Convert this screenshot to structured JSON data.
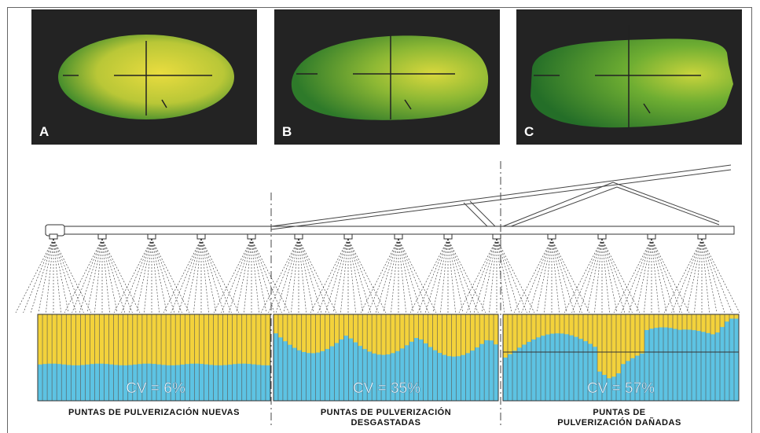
{
  "photos": [
    {
      "label": "A"
    },
    {
      "label": "B"
    },
    {
      "label": "C"
    }
  ],
  "panels": [
    {
      "cv_label": "CV = 6%",
      "caption_line1": "PUNTAS DE PULVERIZACIÓN NUEVAS",
      "caption_line2": ""
    },
    {
      "cv_label": "CV = 35%",
      "caption_line1": "PUNTAS DE PULVERIZACIÓN",
      "caption_line2": "DESGASTADAS"
    },
    {
      "cv_label": "CV = 57%",
      "caption_line1": "PUNTAS DE",
      "caption_line2": "PULVERIZACIÓN DAÑADAS"
    }
  ],
  "colors": {
    "yellow": "#F3D23B",
    "blue": "#5DC3E3",
    "photo_bg": "#232323",
    "spray_green": "#7BB02A",
    "spray_yellow": "#E6DB3A"
  }
}
